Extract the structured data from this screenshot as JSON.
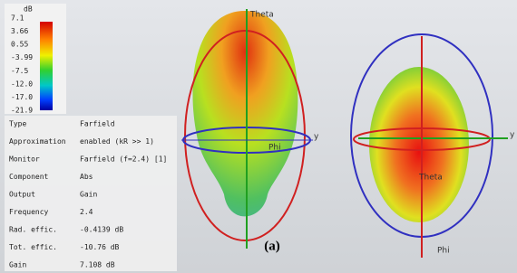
{
  "colorbar": {
    "unit": "dB",
    "labels": [
      "7.1",
      "3.66",
      "0.55",
      "-3.99",
      "-7.5",
      "-12.0",
      "-17.0",
      "-21.9"
    ]
  },
  "table": {
    "rows": [
      [
        "Type",
        "Farfield"
      ],
      [
        "Approximation",
        "enabled (kR >> 1)"
      ],
      [
        "Monitor",
        "Farfield (f=2.4) [1]"
      ],
      [
        "Component",
        "Abs"
      ],
      [
        "Output",
        "Gain"
      ],
      [
        "Frequency",
        "2.4"
      ],
      [
        "Rad. effic.",
        "-0.4139 dB"
      ],
      [
        "Tot. effic.",
        "-10.76 dB"
      ],
      [
        "Gain",
        "7.108 dB"
      ]
    ]
  },
  "left_view": {
    "theta": "Theta",
    "phi": "Phi",
    "y": "y"
  },
  "right_view": {
    "theta": "Theta",
    "phi": "Phi",
    "y": "y"
  },
  "caption": "(a)"
}
